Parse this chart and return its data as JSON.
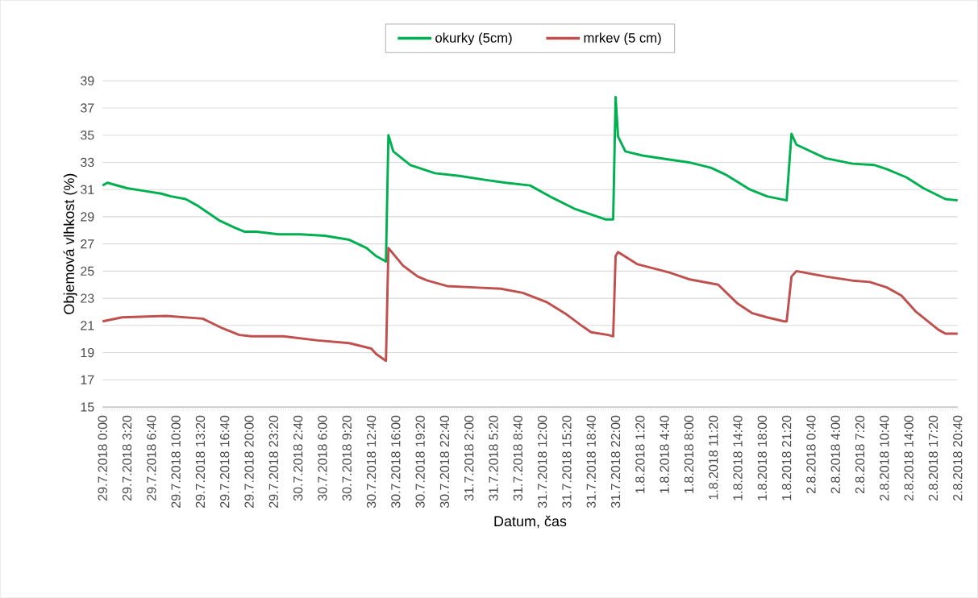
{
  "chart_data": {
    "type": "line",
    "xlabel": "Datum, čas",
    "ylabel": "Objemová vlhkost (%)",
    "xlim": [
      "2018-07-29T00:00",
      "2018-08-02T20:40"
    ],
    "ylim": [
      15,
      39
    ],
    "yticks": [
      15,
      17,
      19,
      21,
      23,
      25,
      27,
      29,
      31,
      33,
      35,
      37,
      39
    ],
    "xticks": [
      {
        "value": "2018-07-29T00:00",
        "label": "29.7.2018 0:00"
      },
      {
        "value": "2018-07-29T03:20",
        "label": "29.7.2018 3:20"
      },
      {
        "value": "2018-07-29T06:40",
        "label": "29.7.2018 6:40"
      },
      {
        "value": "2018-07-29T10:00",
        "label": "29.7.2018 10:00"
      },
      {
        "value": "2018-07-29T13:20",
        "label": "29.7.2018 13:20"
      },
      {
        "value": "2018-07-29T16:40",
        "label": "29.7.2018 16:40"
      },
      {
        "value": "2018-07-29T20:00",
        "label": "29.7.2018 20:00"
      },
      {
        "value": "2018-07-29T23:20",
        "label": "29.7.2018 23:20"
      },
      {
        "value": "2018-07-30T02:40",
        "label": "30.7.2018 2:40"
      },
      {
        "value": "2018-07-30T06:00",
        "label": "30.7.2018 6:00"
      },
      {
        "value": "2018-07-30T09:20",
        "label": "30.7.2018 9:20"
      },
      {
        "value": "2018-07-30T12:40",
        "label": "30.7.2018 12:40"
      },
      {
        "value": "2018-07-30T16:00",
        "label": "30.7.2018 16:00"
      },
      {
        "value": "2018-07-30T19:20",
        "label": "30.7.2018 19:20"
      },
      {
        "value": "2018-07-30T22:40",
        "label": "30.7.2018 22:40"
      },
      {
        "value": "2018-07-31T02:00",
        "label": "31.7.2018 2:00"
      },
      {
        "value": "2018-07-31T05:20",
        "label": "31.7.2018 5:20"
      },
      {
        "value": "2018-07-31T08:40",
        "label": "31.7.2018 8:40"
      },
      {
        "value": "2018-07-31T12:00",
        "label": "31.7.2018 12:00"
      },
      {
        "value": "2018-07-31T15:20",
        "label": "31.7.2018 15:20"
      },
      {
        "value": "2018-07-31T18:40",
        "label": "31.7.2018 18:40"
      },
      {
        "value": "2018-07-31T22:00",
        "label": "31.7.2018 22:00"
      },
      {
        "value": "2018-08-01T01:20",
        "label": "1.8.2018 1:20"
      },
      {
        "value": "2018-08-01T04:40",
        "label": "1.8.2018 4:40"
      },
      {
        "value": "2018-08-01T08:00",
        "label": "1.8.2018 8:00"
      },
      {
        "value": "2018-08-01T11:20",
        "label": "1.8.2018 11:20"
      },
      {
        "value": "2018-08-01T14:40",
        "label": "1.8.2018 14:40"
      },
      {
        "value": "2018-08-01T18:00",
        "label": "1.8.2018 18:00"
      },
      {
        "value": "2018-08-01T21:20",
        "label": "1.8.2018 21:20"
      },
      {
        "value": "2018-08-02T00:40",
        "label": "2.8.2018 0:40"
      },
      {
        "value": "2018-08-02T04:00",
        "label": "2.8.2018 4:00"
      },
      {
        "value": "2018-08-02T07:20",
        "label": "2.8.2018 7:20"
      },
      {
        "value": "2018-08-02T10:40",
        "label": "2.8.2018 10:40"
      },
      {
        "value": "2018-08-02T14:00",
        "label": "2.8.2018 14:00"
      },
      {
        "value": "2018-08-02T17:20",
        "label": "2.8.2018 17:20"
      },
      {
        "value": "2018-08-02T20:40",
        "label": "2.8.2018 20:40"
      }
    ],
    "grid": "y",
    "legend": "top",
    "marker": "none",
    "line_style": "solid",
    "series": [
      {
        "name": "okurky (5cm)",
        "color": "#00b050",
        "x": [
          "2018-07-29T00:00",
          "2018-07-29T00:40",
          "2018-07-29T03:20",
          "2018-07-29T05:40",
          "2018-07-29T08:00",
          "2018-07-29T09:20",
          "2018-07-29T11:20",
          "2018-07-29T13:00",
          "2018-07-29T16:00",
          "2018-07-29T18:00",
          "2018-07-29T19:20",
          "2018-07-29T21:00",
          "2018-07-30T00:00",
          "2018-07-30T03:00",
          "2018-07-30T06:20",
          "2018-07-30T09:40",
          "2018-07-30T12:00",
          "2018-07-30T13:20",
          "2018-07-30T14:40",
          "2018-07-30T15:00",
          "2018-07-30T15:40",
          "2018-07-30T18:00",
          "2018-07-30T21:20",
          "2018-07-31T00:40",
          "2018-07-31T04:20",
          "2018-07-31T07:00",
          "2018-07-31T10:20",
          "2018-07-31T13:00",
          "2018-07-31T16:20",
          "2018-07-31T20:40",
          "2018-07-31T21:40",
          "2018-07-31T22:00",
          "2018-07-31T22:20",
          "2018-07-31T23:20",
          "2018-08-01T01:40",
          "2018-08-01T05:20",
          "2018-08-01T08:00",
          "2018-08-01T11:00",
          "2018-08-01T13:00",
          "2018-08-01T16:20",
          "2018-08-01T18:40",
          "2018-08-01T21:20",
          "2018-08-01T22:00",
          "2018-08-01T22:40",
          "2018-08-02T02:40",
          "2018-08-02T06:20",
          "2018-08-02T09:20",
          "2018-08-02T11:00",
          "2018-08-02T13:40",
          "2018-08-02T16:00",
          "2018-08-02T19:00",
          "2018-08-02T20:40"
        ],
        "values": [
          31.3,
          31.5,
          31.1,
          30.9,
          30.7,
          30.5,
          30.3,
          29.8,
          28.7,
          28.2,
          27.9,
          27.9,
          27.7,
          27.7,
          27.6,
          27.3,
          26.7,
          26.1,
          25.7,
          35.0,
          33.8,
          32.8,
          32.2,
          32.0,
          31.7,
          31.5,
          31.3,
          30.5,
          29.6,
          28.8,
          28.8,
          37.8,
          34.9,
          33.8,
          33.5,
          33.2,
          33.0,
          32.6,
          32.1,
          31.0,
          30.5,
          30.2,
          35.1,
          34.3,
          33.3,
          32.9,
          32.8,
          32.5,
          31.9,
          31.1,
          30.3,
          30.2
        ]
      },
      {
        "name": "mrkev (5 cm)",
        "color": "#c0504d",
        "x": [
          "2018-07-29T00:00",
          "2018-07-29T02:40",
          "2018-07-29T08:40",
          "2018-07-29T13:40",
          "2018-07-29T16:20",
          "2018-07-29T18:40",
          "2018-07-29T20:20",
          "2018-07-30T00:40",
          "2018-07-30T05:20",
          "2018-07-30T09:40",
          "2018-07-30T12:40",
          "2018-07-30T13:20",
          "2018-07-30T14:40",
          "2018-07-30T15:00",
          "2018-07-30T17:00",
          "2018-07-30T19:00",
          "2018-07-30T20:20",
          "2018-07-30T23:00",
          "2018-07-31T02:40",
          "2018-07-31T06:20",
          "2018-07-31T09:20",
          "2018-07-31T12:40",
          "2018-07-31T15:20",
          "2018-07-31T17:20",
          "2018-07-31T18:40",
          "2018-07-31T21:00",
          "2018-07-31T21:40",
          "2018-07-31T22:00",
          "2018-07-31T22:20",
          "2018-08-01T01:00",
          "2018-08-01T05:20",
          "2018-08-01T08:00",
          "2018-08-01T12:00",
          "2018-08-01T14:40",
          "2018-08-01T16:40",
          "2018-08-01T18:40",
          "2018-08-01T21:00",
          "2018-08-01T21:20",
          "2018-08-01T22:00",
          "2018-08-01T22:40",
          "2018-08-02T02:40",
          "2018-08-02T06:20",
          "2018-08-02T08:40",
          "2018-08-02T11:00",
          "2018-08-02T13:00",
          "2018-08-02T15:00",
          "2018-08-02T18:00",
          "2018-08-02T19:00",
          "2018-08-02T20:40"
        ],
        "values": [
          21.3,
          21.6,
          21.7,
          21.5,
          20.8,
          20.3,
          20.2,
          20.2,
          19.9,
          19.7,
          19.3,
          18.9,
          18.4,
          26.7,
          25.4,
          24.6,
          24.3,
          23.9,
          23.8,
          23.7,
          23.4,
          22.7,
          21.8,
          21.0,
          20.5,
          20.3,
          20.2,
          26.1,
          26.4,
          25.5,
          24.9,
          24.4,
          24.0,
          22.6,
          21.9,
          21.6,
          21.3,
          21.3,
          24.6,
          25.0,
          24.6,
          24.3,
          24.2,
          23.8,
          23.2,
          22.0,
          20.7,
          20.4,
          20.4
        ]
      }
    ]
  }
}
